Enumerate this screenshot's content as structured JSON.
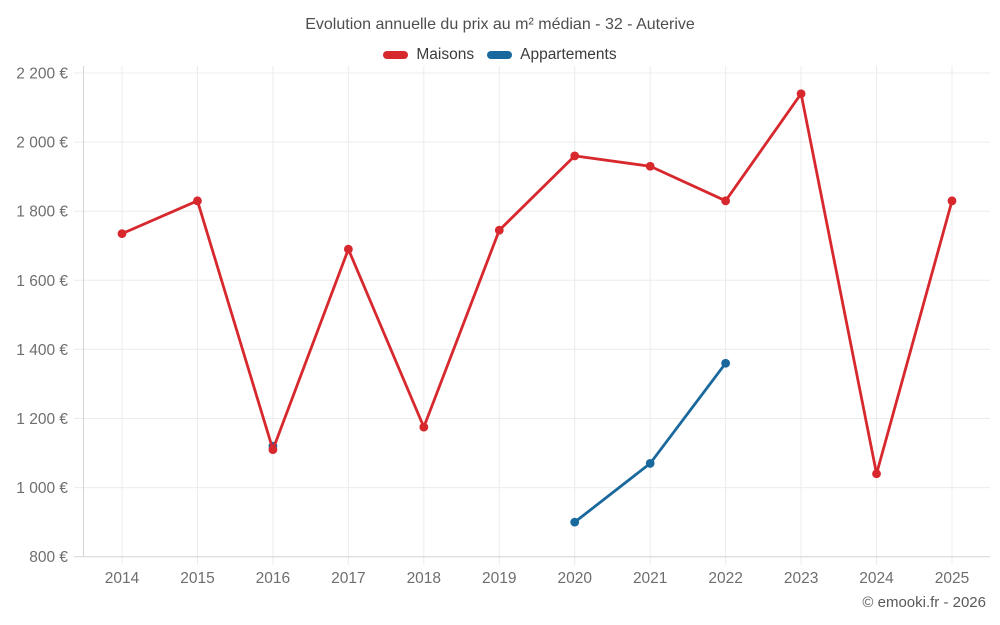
{
  "header": {
    "title": "Evolution annuelle du prix au m² médian - 32 - Auterive"
  },
  "legend": [
    {
      "label": "Maisons",
      "color": "#d7282e"
    },
    {
      "label": "Appartements",
      "color": "#1a699e"
    }
  ],
  "footer": {
    "credit": "© emooki.fr - 2026"
  },
  "colors": {
    "maisons": "#d7282e",
    "appartements": "#1a699e",
    "gridline": "#ececec",
    "axis_line": "#d4d4d4",
    "tick_label": "#6e6e6e"
  },
  "chart_data": {
    "type": "line",
    "title": "Evolution annuelle du prix au m² médian - 32 - Auterive",
    "categories": [
      "2014",
      "2015",
      "2016",
      "2017",
      "2018",
      "2019",
      "2020",
      "2021",
      "2022",
      "2023",
      "2024",
      "2025"
    ],
    "series": [
      {
        "name": "Maisons",
        "color": "#d7282e",
        "values": [
          1735,
          1830,
          1110,
          1690,
          1175,
          1745,
          1960,
          1930,
          1830,
          2140,
          1040,
          1830
        ]
      },
      {
        "name": "Appartements",
        "color": "#1a699e",
        "values": [
          null,
          null,
          1120,
          null,
          null,
          null,
          900,
          1070,
          1360,
          null,
          null,
          null
        ]
      }
    ],
    "ylim": [
      800,
      2200
    ],
    "y_ticks": [
      {
        "value": 800,
        "label": "800 €"
      },
      {
        "value": 1000,
        "label": "1 000 €"
      },
      {
        "value": 1200,
        "label": "1 200 €"
      },
      {
        "value": 1400,
        "label": "1 400 €"
      },
      {
        "value": 1600,
        "label": "1 600 €"
      },
      {
        "value": 1800,
        "label": "1 800 €"
      },
      {
        "value": 2000,
        "label": "2 000 €"
      },
      {
        "value": 2200,
        "label": "2 200 €"
      }
    ],
    "grid": true,
    "legend_position": "top",
    "unit": "€"
  }
}
